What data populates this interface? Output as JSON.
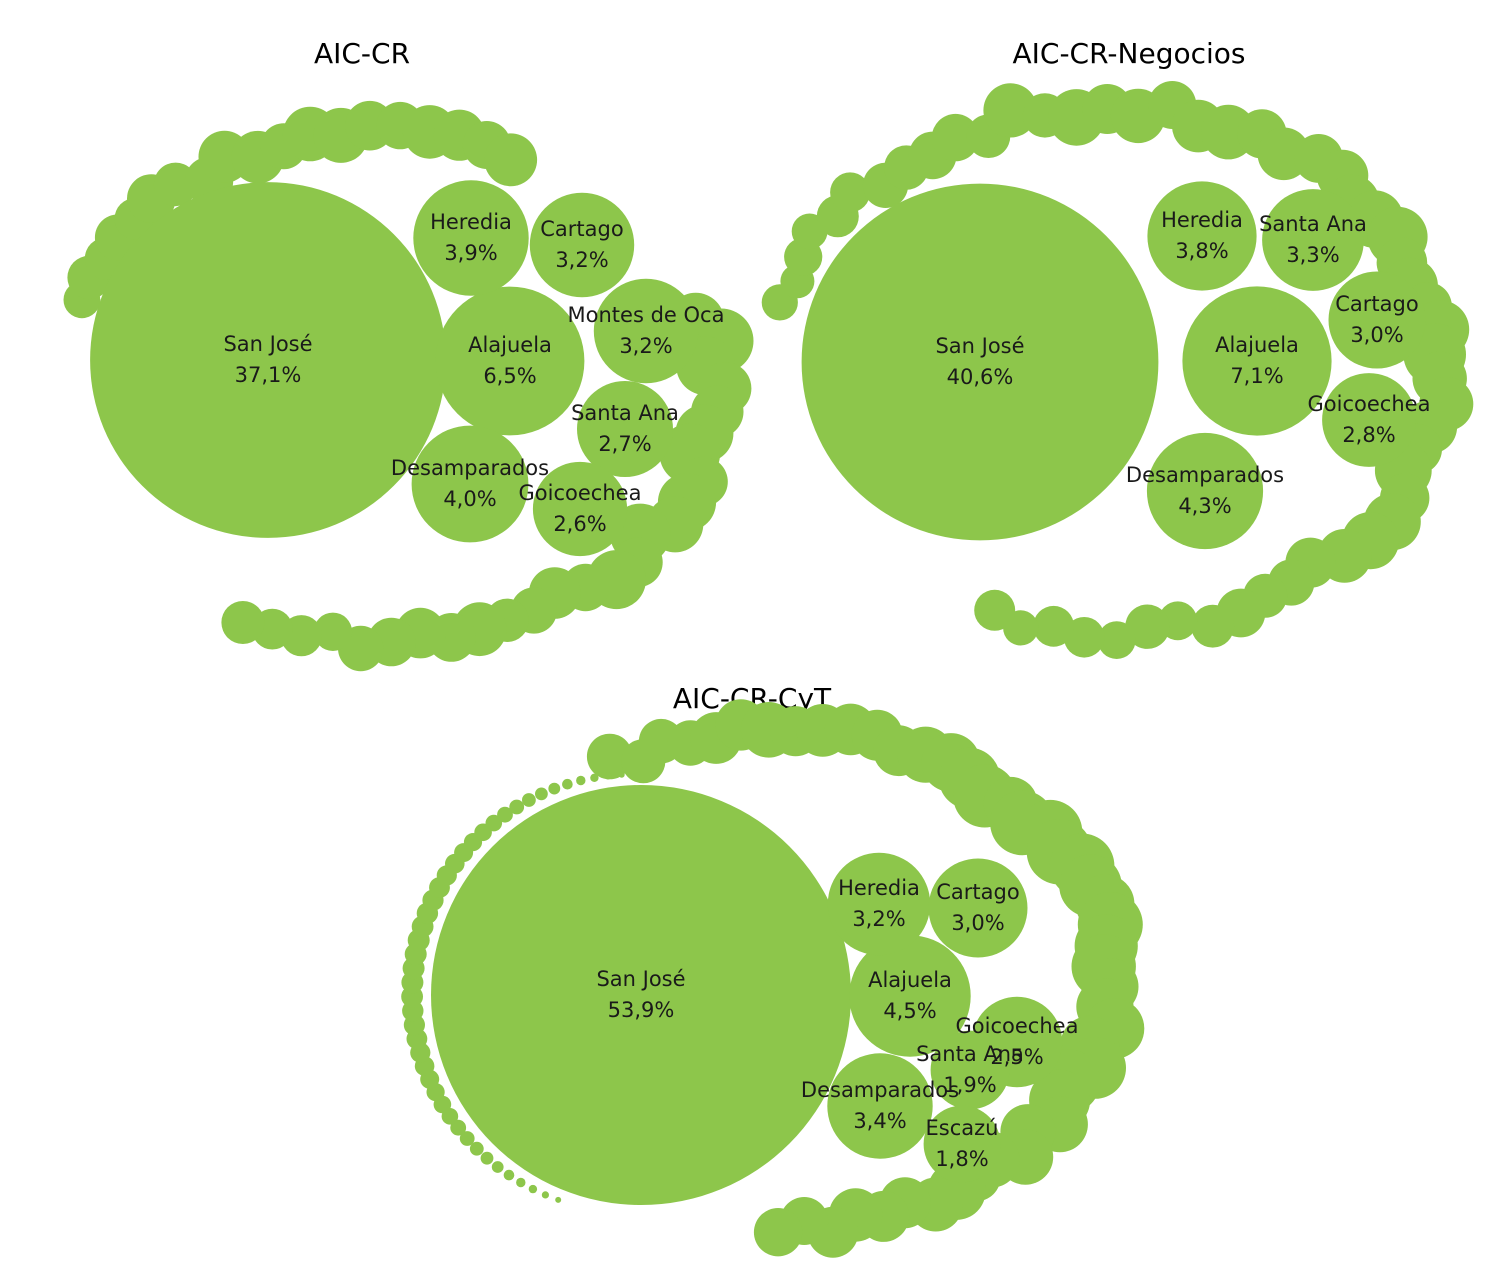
{
  "bubble_color": "#8DC64B",
  "chart_data": [
    {
      "type": "packed-bubble",
      "title": "AIC-CR",
      "series": [
        {
          "name": "San José",
          "value": 37.1,
          "label": "37,1%"
        },
        {
          "name": "Alajuela",
          "value": 6.5,
          "label": "6,5%"
        },
        {
          "name": "Desamparados",
          "value": 4.0,
          "label": "4,0%"
        },
        {
          "name": "Heredia",
          "value": 3.9,
          "label": "3,9%"
        },
        {
          "name": "Cartago",
          "value": 3.2,
          "label": "3,2%"
        },
        {
          "name": "Montes de Oca",
          "value": 3.2,
          "label": "3,2%"
        },
        {
          "name": "Santa Ana",
          "value": 2.7,
          "label": "2,7%"
        },
        {
          "name": "Goicoechea",
          "value": 2.6,
          "label": "2,6%"
        }
      ]
    },
    {
      "type": "packed-bubble",
      "title": "AIC-CR-Negocios",
      "series": [
        {
          "name": "San José",
          "value": 40.6,
          "label": "40,6%"
        },
        {
          "name": "Alajuela",
          "value": 7.1,
          "label": "7,1%"
        },
        {
          "name": "Desamparados",
          "value": 4.3,
          "label": "4,3%"
        },
        {
          "name": "Heredia",
          "value": 3.8,
          "label": "3,8%"
        },
        {
          "name": "Santa Ana",
          "value": 3.3,
          "label": "3,3%"
        },
        {
          "name": "Cartago",
          "value": 3.0,
          "label": "3,0%"
        },
        {
          "name": "Goicoechea",
          "value": 2.8,
          "label": "2,8%"
        }
      ]
    },
    {
      "type": "packed-bubble",
      "title": "AIC-CR-CyT",
      "series": [
        {
          "name": "San José",
          "value": 53.9,
          "label": "53,9%"
        },
        {
          "name": "Alajuela",
          "value": 4.5,
          "label": "4,5%"
        },
        {
          "name": "Desamparados",
          "value": 3.4,
          "label": "3,4%"
        },
        {
          "name": "Heredia",
          "value": 3.2,
          "label": "3,2%"
        },
        {
          "name": "Cartago",
          "value": 3.0,
          "label": "3,0%"
        },
        {
          "name": "Goicoechea",
          "value": 2.5,
          "label": "2,5%"
        },
        {
          "name": "Santa Ana",
          "value": 1.9,
          "label": "1,9%"
        },
        {
          "name": "Escazú",
          "value": 1.8,
          "label": "1,8%"
        }
      ]
    }
  ]
}
